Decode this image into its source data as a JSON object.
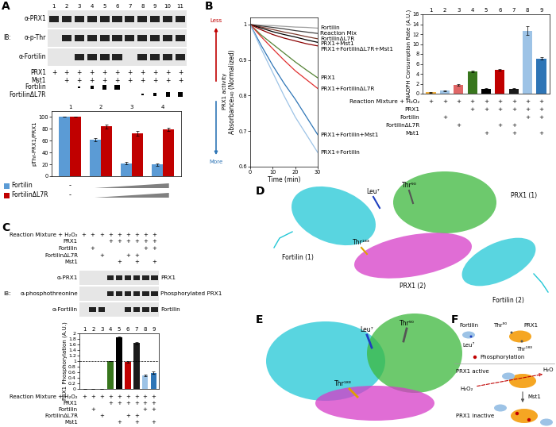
{
  "panel_labels": [
    "A",
    "B",
    "C",
    "D",
    "E",
    "F"
  ],
  "chart_data": [
    {
      "type": "bar",
      "categories": [
        "1",
        "2",
        "3",
        "4"
      ],
      "ylabel": "pThr-PRX1/PRX1",
      "ylim": [
        0,
        110
      ],
      "yticks": [
        0,
        20,
        40,
        60,
        80,
        100
      ],
      "tick_labels": "y",
      "zero_dose_label": "-",
      "series": [
        {
          "name": "Fortilin",
          "color": "#5b9bd5",
          "values": [
            100,
            62,
            22,
            20
          ],
          "errors": [
            0,
            3,
            2,
            2
          ]
        },
        {
          "name": "FortilinΔL7R",
          "color": "#c00000",
          "values": [
            100,
            84,
            73,
            79
          ],
          "errors": [
            0,
            3,
            4,
            3
          ]
        }
      ]
    },
    {
      "type": "line",
      "xlabel": "Time (min)",
      "ylabel": "Absorbance₃₄₀ (Normalized)",
      "activity_label": "PRX1 activity",
      "arrow_labels": [
        "Less",
        "More"
      ],
      "x": [
        0,
        5,
        10,
        15,
        20,
        25,
        30
      ],
      "xlim": [
        0,
        30
      ],
      "xticks": [
        0,
        10,
        20,
        30
      ],
      "ylim": [
        0.6,
        1.02
      ],
      "yticks": [
        0.6,
        0.7,
        0.8,
        0.9,
        1
      ],
      "series": [
        {
          "name": "Fortilin",
          "color": "#9e9e9e",
          "values": [
            1,
            0.998,
            0.997,
            0.995,
            0.993,
            0.992,
            0.99
          ]
        },
        {
          "name": "Reaction Mix",
          "color": "#404040",
          "values": [
            1,
            0.996,
            0.992,
            0.988,
            0.983,
            0.979,
            0.975
          ]
        },
        {
          "name": "FortilinΔL7R",
          "color": "#7a3b2e",
          "values": [
            1,
            0.993,
            0.986,
            0.979,
            0.973,
            0.966,
            0.96
          ]
        },
        {
          "name": "PRX1+Mst1",
          "color": "#000000",
          "values": [
            1,
            0.99,
            0.98,
            0.972,
            0.965,
            0.957,
            0.95
          ]
        },
        {
          "name": "PRX1+FortilinΔL7R+Mst1",
          "color": "#8b0000",
          "values": [
            1,
            0.985,
            0.972,
            0.962,
            0.954,
            0.946,
            0.94
          ]
        },
        {
          "name": "PRX1",
          "color": "#548235",
          "values": [
            1,
            0.97,
            0.945,
            0.92,
            0.895,
            0.872,
            0.85
          ]
        },
        {
          "name": "PRX1+FortilinΔL7R",
          "color": "#e03030",
          "values": [
            1,
            0.965,
            0.932,
            0.9,
            0.87,
            0.845,
            0.82
          ]
        },
        {
          "name": "PRX1+Fortilin+Mst1",
          "color": "#2e75b6",
          "values": [
            1,
            0.94,
            0.885,
            0.835,
            0.79,
            0.74,
            0.69
          ]
        },
        {
          "name": "PRX1+Fortilin",
          "color": "#9dc3e6",
          "values": [
            1,
            0.93,
            0.865,
            0.8,
            0.74,
            0.69,
            0.64
          ]
        }
      ]
    },
    {
      "type": "bar",
      "categories": [
        "1",
        "2",
        "3",
        "4",
        "5",
        "6",
        "7",
        "8",
        "9"
      ],
      "ylabel": "NADPH Consumption Rate (A.U.)",
      "ylim": [
        0,
        16
      ],
      "yticks": [
        0,
        2,
        4,
        6,
        8,
        10,
        12,
        14,
        16
      ],
      "tick_labels": "y",
      "values": [
        0.3,
        0.6,
        1.8,
        4.5,
        1.0,
        4.8,
        1.0,
        12.7,
        7.1
      ],
      "errors": [
        0.1,
        0.1,
        0.2,
        0.1,
        0.2,
        0.1,
        0.1,
        0.9,
        0.2
      ],
      "colors": [
        "#f0b040",
        "#9dc3e6",
        "#e06666",
        "#38761d",
        "#000000",
        "#c00000",
        "#1a1a1a",
        "#9dc3e6",
        "#2e75b6"
      ]
    },
    {
      "type": "bar",
      "categories": [
        "1",
        "2",
        "3",
        "4",
        "5",
        "6",
        "7",
        "8",
        "9"
      ],
      "ylabel": "PRX1 Phosphorylation (A.U.)",
      "ylim": [
        0,
        2
      ],
      "yticks": [
        0,
        0.2,
        0.4,
        0.6,
        0.8,
        1,
        1.2,
        1.4,
        1.6,
        1.8,
        2
      ],
      "tick_labels": "y",
      "reference_line": 1,
      "values": [
        0,
        0,
        0,
        1.0,
        1.85,
        0.97,
        1.65,
        0.48,
        0.58
      ],
      "errors": [
        0,
        0,
        0,
        0,
        0.05,
        0.03,
        0.05,
        0.03,
        0.04
      ],
      "colors": [
        "#f0b040",
        "#9dc3e6",
        "#e06666",
        "#38761d",
        "#000000",
        "#c00000",
        "#1a1a1a",
        "#9dc3e6",
        "#2e75b6"
      ]
    }
  ],
  "blots": {
    "A": {
      "ib_label": "IB:",
      "lane_numbers": [
        1,
        2,
        3,
        4,
        5,
        6,
        7,
        8,
        9,
        10,
        11
      ],
      "rows": [
        {
          "label": "α-PRX1",
          "lanes": [
            1,
            2,
            3,
            4,
            5,
            6,
            7,
            8,
            9,
            10,
            11
          ]
        },
        {
          "label": "α-p-Thr",
          "lanes": [
            2,
            3,
            4,
            5,
            6,
            7,
            8,
            9,
            10,
            11
          ]
        },
        {
          "label": "α-Fortilin",
          "lanes": [
            3,
            4,
            5,
            6,
            8,
            9,
            10,
            11
          ]
        }
      ]
    },
    "C": {
      "ib_label": "IB:",
      "rows": [
        {
          "label": "α-PRX1",
          "right_label": "PRX1",
          "lanes": [
            4,
            5,
            6,
            7,
            8,
            9
          ]
        },
        {
          "label": "α-phosphothreonine",
          "right_label": "Phosphorylated PRX1",
          "lanes": [
            4,
            5,
            6,
            7,
            8,
            9
          ]
        },
        {
          "label": "α-Fortilin",
          "right_label": "Fortilin",
          "lanes": [
            2,
            3,
            6,
            7,
            8,
            9
          ]
        }
      ]
    }
  },
  "tables": {
    "A": {
      "mark": "+",
      "rows": [
        {
          "label": "PRX1",
          "lanes": [
            1,
            2,
            3,
            4,
            5,
            6,
            7,
            8,
            9,
            10,
            11
          ]
        },
        {
          "label": "Mst1",
          "lanes": [
            2,
            3,
            4,
            5,
            6,
            7,
            8,
            9,
            10,
            11
          ]
        },
        {
          "label": "Fortilin",
          "lanes": [
            3,
            4,
            5,
            6
          ],
          "doses": [
            1,
            2,
            3,
            4
          ]
        },
        {
          "label": "FortilinΔL7R",
          "lanes": [
            8,
            9,
            10,
            11
          ],
          "doses": [
            1,
            2,
            3,
            4
          ]
        }
      ]
    },
    "B": {
      "mark": "+",
      "rows": [
        {
          "label": "Reaction Mixture + H₂O₂",
          "lanes": [
            1,
            2,
            3,
            4,
            5,
            6,
            7,
            8,
            9
          ]
        },
        {
          "label": "PRX1",
          "lanes": [
            4,
            5,
            6,
            7,
            8,
            9
          ]
        },
        {
          "label": "Fortilin",
          "lanes": [
            2,
            8,
            9
          ]
        },
        {
          "label": "FortilinΔL7R",
          "lanes": [
            3,
            6,
            7
          ]
        },
        {
          "label": "Mst1",
          "lanes": [
            5,
            7,
            9
          ]
        }
      ]
    },
    "C_blot": {
      "mark": "+",
      "rows": [
        {
          "label": "Reaction Mixture + H₂O₂",
          "lanes": [
            1,
            2,
            3,
            4,
            5,
            6,
            7,
            8,
            9
          ]
        },
        {
          "label": "PRX1",
          "lanes": [
            4,
            5,
            6,
            7,
            8,
            9
          ]
        },
        {
          "label": "Fortilin",
          "lanes": [
            2,
            8,
            9
          ]
        },
        {
          "label": "FortilinΔL7R",
          "lanes": [
            3,
            6,
            7
          ]
        },
        {
          "label": "Mst1",
          "lanes": [
            5,
            7,
            9
          ]
        }
      ]
    },
    "C_bar": {
      "mark": "+",
      "rows": [
        {
          "label": "Reaction Mixture + H₂O₂",
          "lanes": [
            1,
            2,
            3,
            4,
            5,
            6,
            7,
            8,
            9
          ]
        },
        {
          "label": "PRX1",
          "lanes": [
            4,
            5,
            6,
            7,
            8,
            9
          ]
        },
        {
          "label": "Fortilin",
          "lanes": [
            2,
            8,
            9
          ]
        },
        {
          "label": "FortilinΔL7R",
          "lanes": [
            3,
            6,
            7
          ]
        },
        {
          "label": "Mst1",
          "lanes": [
            5,
            7,
            9
          ]
        }
      ]
    }
  },
  "diagrams": {
    "D": [
      "Leu⁷",
      "Thr⁹⁰",
      "PRX1 (1)",
      "Fortilin (1)",
      "Thr¹⁸³",
      "PRX1 (2)",
      "Fortilin (2)"
    ],
    "E": [
      "Leu⁷",
      "Thr⁹⁰",
      "Thr¹⁸³"
    ],
    "F": {
      "legend_items": [
        "Fortilin",
        "Thr⁹⁰",
        "PRX1",
        "Leu⁷",
        "Thr¹⁸³",
        "Phosphorylation"
      ],
      "states": [
        "PRX1 active",
        "PRX1 inactive"
      ],
      "substrate": "H₂O₂",
      "product": "H₂O",
      "kinase": "Mst1"
    }
  }
}
